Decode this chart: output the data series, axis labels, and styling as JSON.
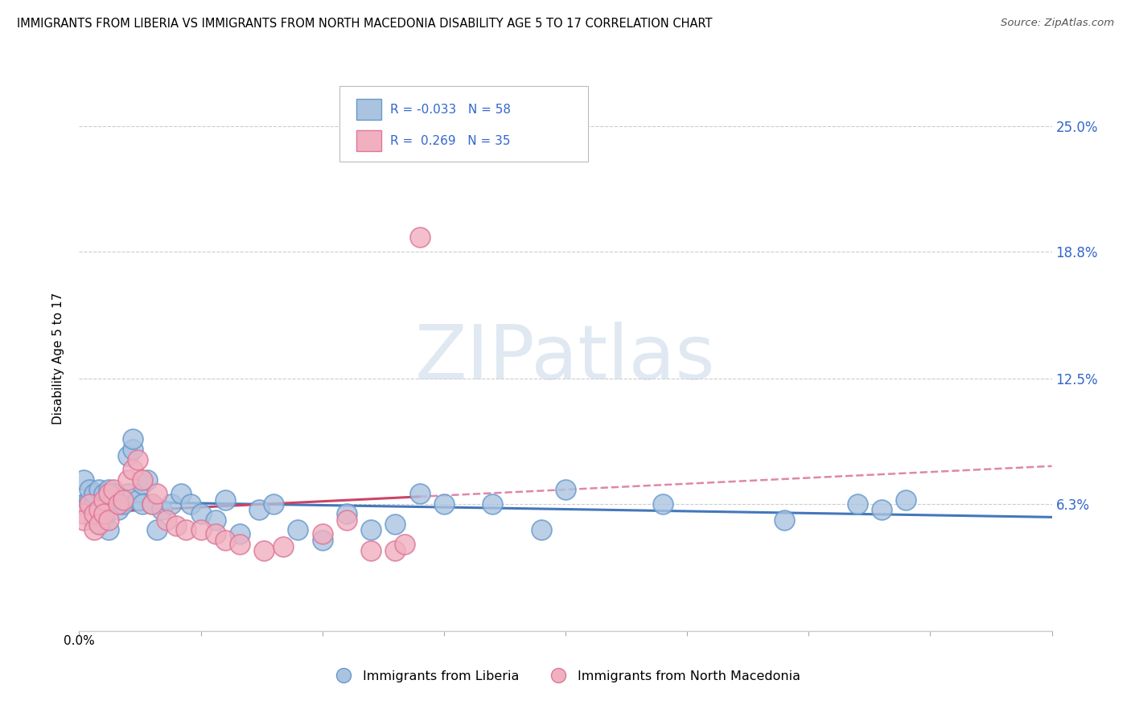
{
  "title": "IMMIGRANTS FROM LIBERIA VS IMMIGRANTS FROM NORTH MACEDONIA DISABILITY AGE 5 TO 17 CORRELATION CHART",
  "source": "Source: ZipAtlas.com",
  "ylabel": "Disability Age 5 to 17",
  "ytick_labels": [
    "6.3%",
    "12.5%",
    "18.8%",
    "25.0%"
  ],
  "ytick_values": [
    0.063,
    0.125,
    0.188,
    0.25
  ],
  "xlim": [
    0.0,
    0.2
  ],
  "ylim": [
    0.0,
    0.27
  ],
  "legend1_r": "-0.033",
  "legend1_n": "58",
  "legend2_r": "0.269",
  "legend2_n": "35",
  "liberia_color": "#aac4e0",
  "liberia_edge": "#6699cc",
  "macedonia_color": "#f0b0c0",
  "macedonia_edge": "#dd7799",
  "liberia_x": [
    0.001,
    0.001,
    0.002,
    0.002,
    0.003,
    0.003,
    0.003,
    0.004,
    0.004,
    0.004,
    0.004,
    0.005,
    0.005,
    0.005,
    0.005,
    0.006,
    0.006,
    0.006,
    0.007,
    0.007,
    0.008,
    0.008,
    0.009,
    0.01,
    0.01,
    0.011,
    0.011,
    0.012,
    0.013,
    0.013,
    0.014,
    0.015,
    0.016,
    0.017,
    0.019,
    0.021,
    0.023,
    0.025,
    0.028,
    0.03,
    0.033,
    0.037,
    0.04,
    0.045,
    0.05,
    0.055,
    0.06,
    0.065,
    0.07,
    0.075,
    0.085,
    0.095,
    0.1,
    0.12,
    0.145,
    0.16,
    0.165,
    0.17
  ],
  "liberia_y": [
    0.075,
    0.063,
    0.065,
    0.07,
    0.063,
    0.068,
    0.055,
    0.057,
    0.06,
    0.07,
    0.053,
    0.063,
    0.057,
    0.068,
    0.055,
    0.063,
    0.05,
    0.07,
    0.063,
    0.068,
    0.06,
    0.063,
    0.063,
    0.068,
    0.087,
    0.09,
    0.095,
    0.065,
    0.063,
    0.073,
    0.075,
    0.063,
    0.05,
    0.06,
    0.063,
    0.068,
    0.063,
    0.058,
    0.055,
    0.065,
    0.048,
    0.06,
    0.063,
    0.05,
    0.045,
    0.058,
    0.05,
    0.053,
    0.068,
    0.063,
    0.063,
    0.05,
    0.07,
    0.063,
    0.055,
    0.063,
    0.06,
    0.065
  ],
  "macedonia_x": [
    0.001,
    0.001,
    0.002,
    0.003,
    0.003,
    0.004,
    0.004,
    0.005,
    0.005,
    0.006,
    0.006,
    0.007,
    0.008,
    0.009,
    0.01,
    0.011,
    0.012,
    0.013,
    0.015,
    0.016,
    0.018,
    0.02,
    0.022,
    0.025,
    0.028,
    0.03,
    0.033,
    0.038,
    0.042,
    0.05,
    0.055,
    0.06,
    0.065,
    0.067,
    0.07
  ],
  "macedonia_y": [
    0.058,
    0.055,
    0.063,
    0.05,
    0.058,
    0.06,
    0.053,
    0.065,
    0.058,
    0.068,
    0.055,
    0.07,
    0.063,
    0.065,
    0.075,
    0.08,
    0.085,
    0.075,
    0.063,
    0.068,
    0.055,
    0.052,
    0.05,
    0.05,
    0.048,
    0.045,
    0.043,
    0.04,
    0.042,
    0.048,
    0.055,
    0.04,
    0.04,
    0.043,
    0.195
  ],
  "line_blue_color": "#4477bb",
  "line_pink_solid_color": "#cc4466",
  "line_pink_dash_color": "#dd88aa"
}
